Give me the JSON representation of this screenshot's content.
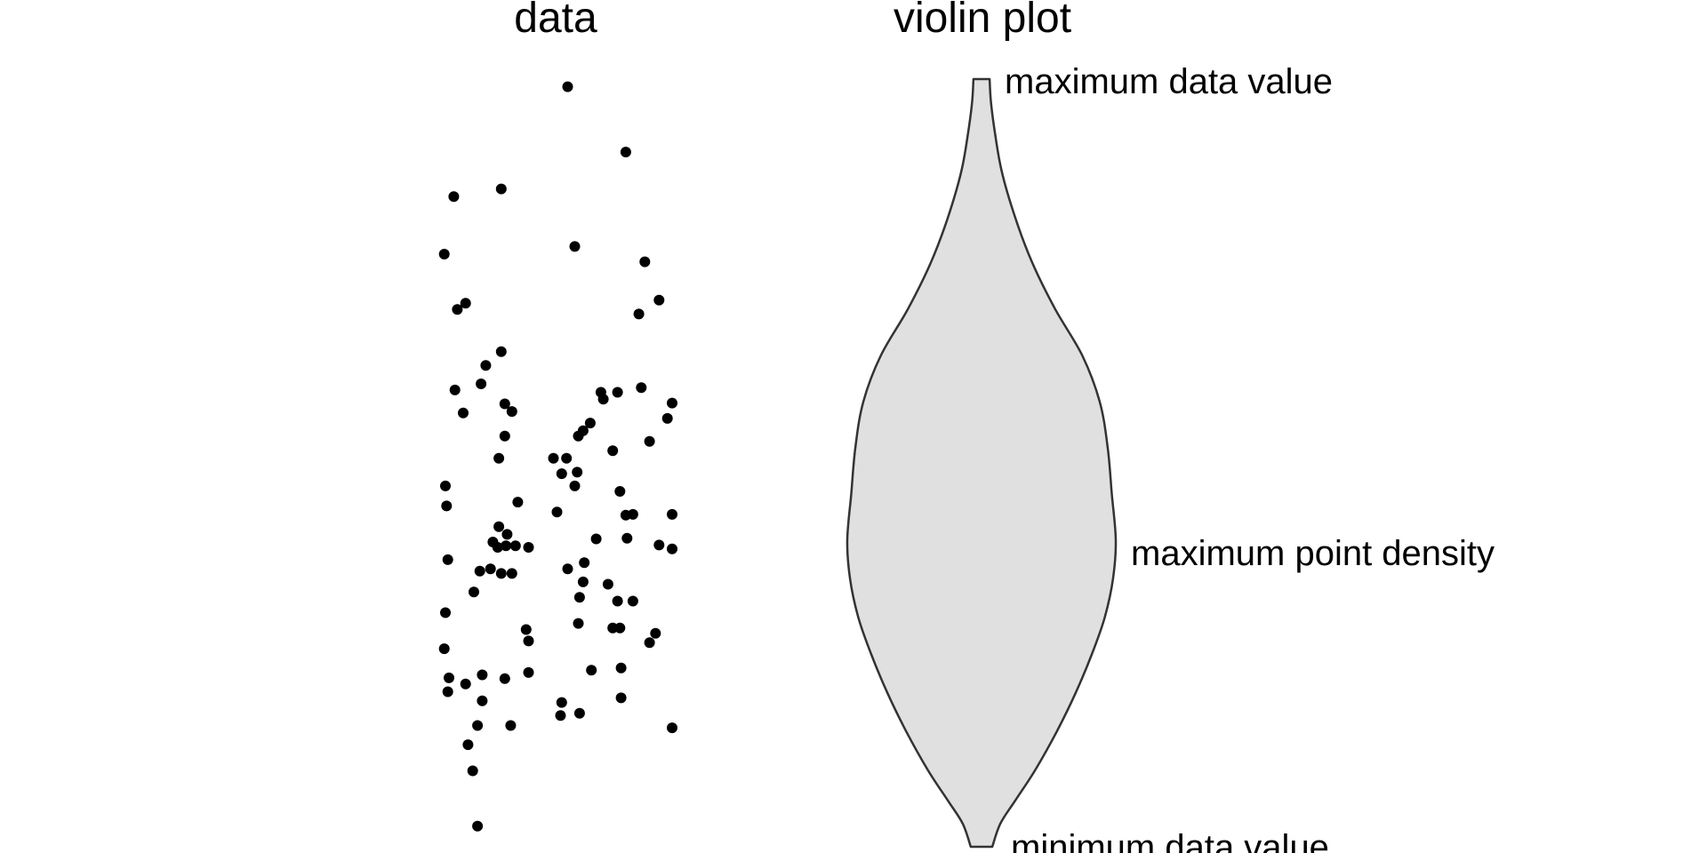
{
  "titles": {
    "left": "data",
    "right": "violin plot"
  },
  "annotations": {
    "max_value": "maximum data value",
    "max_density": "maximum point density",
    "min_value": "minimum data value"
  },
  "colors": {
    "point": "#000000",
    "violin_fill": "#e0e0e0",
    "violin_stroke": "#333333"
  },
  "chart_data": {
    "type": "scatter",
    "panels": [
      "data",
      "violin plot"
    ],
    "y_range": [
      0,
      1
    ],
    "points": [
      [
        0.545,
        0.99
      ],
      [
        0.79,
        0.905
      ],
      [
        0.065,
        0.847
      ],
      [
        0.265,
        0.857
      ],
      [
        0.025,
        0.772
      ],
      [
        0.575,
        0.782
      ],
      [
        0.87,
        0.762
      ],
      [
        0.93,
        0.712
      ],
      [
        0.08,
        0.7
      ],
      [
        0.115,
        0.708
      ],
      [
        0.845,
        0.694
      ],
      [
        0.265,
        0.645
      ],
      [
        0.2,
        0.627
      ],
      [
        0.18,
        0.603
      ],
      [
        0.07,
        0.595
      ],
      [
        0.105,
        0.565
      ],
      [
        0.28,
        0.577
      ],
      [
        0.31,
        0.567
      ],
      [
        0.685,
        0.592
      ],
      [
        0.695,
        0.583
      ],
      [
        0.755,
        0.592
      ],
      [
        0.855,
        0.598
      ],
      [
        0.985,
        0.578
      ],
      [
        0.965,
        0.558
      ],
      [
        0.64,
        0.552
      ],
      [
        0.61,
        0.542
      ],
      [
        0.59,
        0.535
      ],
      [
        0.28,
        0.535
      ],
      [
        0.485,
        0.506
      ],
      [
        0.54,
        0.506
      ],
      [
        0.735,
        0.516
      ],
      [
        0.89,
        0.528
      ],
      [
        0.52,
        0.486
      ],
      [
        0.585,
        0.488
      ],
      [
        0.255,
        0.506
      ],
      [
        0.03,
        0.47
      ],
      [
        0.035,
        0.444
      ],
      [
        0.575,
        0.47
      ],
      [
        0.765,
        0.463
      ],
      [
        0.79,
        0.432
      ],
      [
        0.5,
        0.436
      ],
      [
        0.335,
        0.449
      ],
      [
        0.255,
        0.417
      ],
      [
        0.29,
        0.407
      ],
      [
        0.82,
        0.433
      ],
      [
        0.985,
        0.433
      ],
      [
        0.23,
        0.397
      ],
      [
        0.25,
        0.39
      ],
      [
        0.285,
        0.392
      ],
      [
        0.325,
        0.392
      ],
      [
        0.38,
        0.39
      ],
      [
        0.665,
        0.401
      ],
      [
        0.795,
        0.402
      ],
      [
        0.93,
        0.393
      ],
      [
        0.985,
        0.388
      ],
      [
        0.04,
        0.374
      ],
      [
        0.175,
        0.359
      ],
      [
        0.22,
        0.362
      ],
      [
        0.265,
        0.356
      ],
      [
        0.31,
        0.356
      ],
      [
        0.545,
        0.362
      ],
      [
        0.615,
        0.37
      ],
      [
        0.15,
        0.332
      ],
      [
        0.61,
        0.345
      ],
      [
        0.595,
        0.325
      ],
      [
        0.715,
        0.342
      ],
      [
        0.755,
        0.32
      ],
      [
        0.82,
        0.32
      ],
      [
        0.03,
        0.305
      ],
      [
        0.59,
        0.291
      ],
      [
        0.735,
        0.285
      ],
      [
        0.765,
        0.285
      ],
      [
        0.37,
        0.283
      ],
      [
        0.38,
        0.268
      ],
      [
        0.915,
        0.278
      ],
      [
        0.89,
        0.266
      ],
      [
        0.025,
        0.258
      ],
      [
        0.185,
        0.224
      ],
      [
        0.28,
        0.219
      ],
      [
        0.38,
        0.227
      ],
      [
        0.045,
        0.22
      ],
      [
        0.115,
        0.212
      ],
      [
        0.645,
        0.23
      ],
      [
        0.77,
        0.233
      ],
      [
        0.04,
        0.202
      ],
      [
        0.185,
        0.19
      ],
      [
        0.52,
        0.188
      ],
      [
        0.77,
        0.194
      ],
      [
        0.515,
        0.171
      ],
      [
        0.595,
        0.174
      ],
      [
        0.165,
        0.158
      ],
      [
        0.305,
        0.158
      ],
      [
        0.985,
        0.155
      ],
      [
        0.125,
        0.133
      ],
      [
        0.145,
        0.099
      ],
      [
        0.165,
        0.027
      ]
    ],
    "violin": {
      "profile": [
        [
          1.0,
          0.06
        ],
        [
          0.97,
          0.07
        ],
        [
          0.93,
          0.1
        ],
        [
          0.88,
          0.15
        ],
        [
          0.82,
          0.25
        ],
        [
          0.76,
          0.38
        ],
        [
          0.7,
          0.55
        ],
        [
          0.64,
          0.75
        ],
        [
          0.58,
          0.88
        ],
        [
          0.52,
          0.94
        ],
        [
          0.46,
          0.97
        ],
        [
          0.4,
          1.0
        ],
        [
          0.35,
          0.98
        ],
        [
          0.3,
          0.92
        ],
        [
          0.25,
          0.82
        ],
        [
          0.2,
          0.7
        ],
        [
          0.15,
          0.56
        ],
        [
          0.1,
          0.4
        ],
        [
          0.06,
          0.25
        ],
        [
          0.03,
          0.14
        ],
        [
          0.0,
          0.08
        ]
      ]
    }
  }
}
